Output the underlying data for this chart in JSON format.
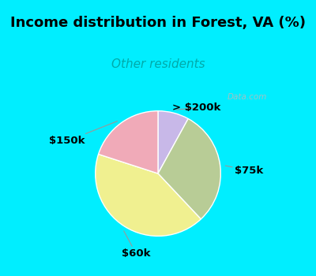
{
  "title": "Income distribution in Forest, VA (%)",
  "subtitle": "Other residents",
  "slices": [
    {
      "label": "> $200k",
      "value": 8,
      "color": "#c8b8e8"
    },
    {
      "label": "$75k",
      "value": 30,
      "color": "#b8cc96"
    },
    {
      "label": "$60k",
      "value": 42,
      "color": "#f0f090"
    },
    {
      "label": "$150k",
      "value": 20,
      "color": "#f0aab8"
    }
  ],
  "bg_color": "#00eeff",
  "chart_bg": "#dff0e8",
  "title_fontsize": 13,
  "subtitle_fontsize": 11,
  "subtitle_color": "#00aaaa",
  "label_fontsize": 9.5,
  "startangle": 90,
  "watermark": "Data.com"
}
